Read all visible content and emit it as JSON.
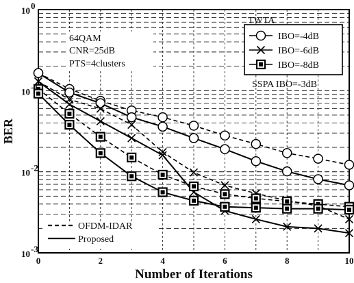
{
  "chart_data": {
    "type": "line",
    "xlabel": "Number of Iterations",
    "ylabel": "BER",
    "xlim": [
      0,
      10
    ],
    "ylim": [
      0.001,
      1
    ],
    "y_scale": "log",
    "x_ticks": [
      "0",
      "2",
      "4",
      "6",
      "8",
      "10"
    ],
    "y_ticks": [
      {
        "base": "10",
        "exp": "0"
      },
      {
        "base": "10",
        "exp": "-1"
      },
      {
        "base": "10",
        "exp": "-2"
      },
      {
        "base": "10",
        "exp": "-3"
      }
    ],
    "grid": true,
    "annotations": [
      "64QAM",
      "CNR=25dB",
      "PTS=4clusters",
      "SSPA IBO=-3dB"
    ],
    "legend": {
      "title": "TWTA",
      "placement": "top-right",
      "entries": [
        {
          "label": "IBO=-4dB",
          "marker": "circle"
        },
        {
          "label": "IBO=-6dB",
          "marker": "x"
        },
        {
          "label": "IBO=-8dB",
          "marker": "square"
        }
      ]
    },
    "legend_style": {
      "placement": "bottom-left",
      "entries": [
        {
          "label": "OFDM-IDAR",
          "dash": "dashed"
        },
        {
          "label": "Proposed",
          "dash": "solid"
        }
      ]
    },
    "x": [
      0,
      1,
      2,
      3,
      4,
      5,
      6,
      7,
      8,
      9,
      10
    ],
    "series": [
      {
        "marker": "circle",
        "dash": "dashed",
        "values": [
          0.165,
          0.105,
          0.075,
          0.057,
          0.047,
          0.037,
          0.028,
          0.022,
          0.017,
          0.0145,
          0.0122
        ]
      },
      {
        "marker": "circle",
        "dash": "solid",
        "values": [
          0.165,
          0.095,
          0.07,
          0.047,
          0.036,
          0.026,
          0.019,
          0.0135,
          0.0101,
          0.0081,
          0.0068
        ]
      },
      {
        "marker": "x",
        "dash": "dashed",
        "values": [
          0.13,
          0.078,
          0.06,
          0.038,
          0.0175,
          0.0098,
          0.0068,
          0.0054,
          0.0044,
          0.0038,
          0.0026
        ]
      },
      {
        "marker": "x",
        "dash": "solid",
        "values": [
          0.13,
          0.068,
          0.042,
          0.026,
          0.016,
          0.0056,
          0.0033,
          0.0026,
          0.0021,
          0.002,
          0.00175
        ]
      },
      {
        "marker": "square",
        "dash": "dashed",
        "values": [
          0.105,
          0.052,
          0.027,
          0.015,
          0.0092,
          0.0066,
          0.0053,
          0.0047,
          0.0043,
          0.004,
          0.0037
        ]
      },
      {
        "marker": "square",
        "dash": "solid",
        "values": [
          0.092,
          0.038,
          0.017,
          0.0088,
          0.0056,
          0.0044,
          0.0037,
          0.0036,
          0.0035,
          0.0035,
          0.0034
        ]
      }
    ]
  }
}
